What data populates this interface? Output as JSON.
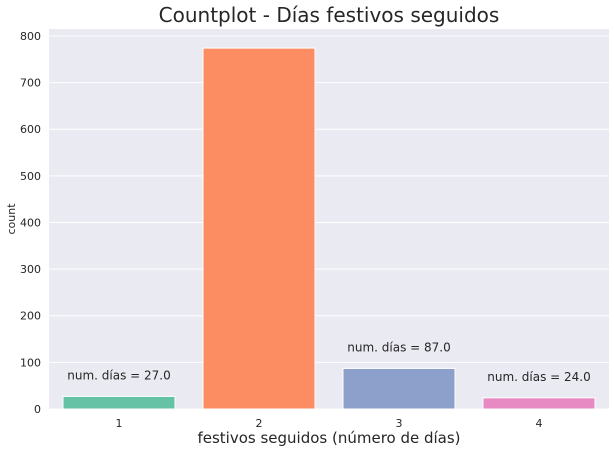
{
  "chart_data": {
    "type": "bar",
    "title": "Countplot - Días festivos seguidos",
    "xlabel": "festivos seguidos (número de días)",
    "ylabel": "count",
    "categories": [
      "1",
      "2",
      "3",
      "4"
    ],
    "values": [
      27,
      774,
      87,
      24
    ],
    "colors": [
      "#66c2a5",
      "#fc8d62",
      "#8da0cb",
      "#e78ac3"
    ],
    "ylim": [
      0,
      815
    ],
    "yticks": [
      0,
      100,
      200,
      300,
      400,
      500,
      600,
      700,
      800
    ],
    "grid": true,
    "background": "#eaeaf2",
    "data_labels": [
      {
        "category": "1",
        "text": "num. días = 27.0"
      },
      {
        "category": "3",
        "text": "num. días = 87.0"
      },
      {
        "category": "4",
        "text": "num. días = 24.0"
      }
    ]
  }
}
